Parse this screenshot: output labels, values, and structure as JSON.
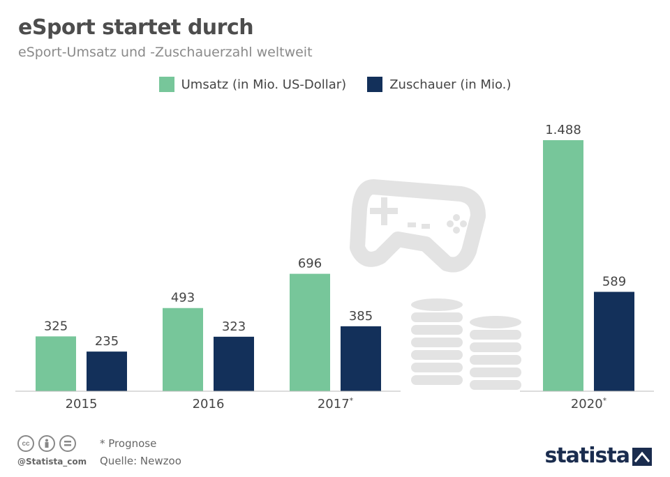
{
  "header": {
    "title": "eSport startet durch",
    "subtitle": "eSport-Umsatz und -Zuschauerzahl weltweit"
  },
  "colors": {
    "umsatz": "#77c69a",
    "zuschauer": "#13305a",
    "label": "#444444"
  },
  "chart_data": {
    "type": "bar",
    "categories": [
      "2015",
      "2016",
      "2017*",
      "2020*"
    ],
    "series": [
      {
        "name": "Umsatz (in Mio. US-Dollar)",
        "values": [
          325,
          493,
          696,
          1488
        ],
        "labels": [
          "325",
          "493",
          "696",
          "1.488"
        ]
      },
      {
        "name": "Zuschauer (in Mio.)",
        "values": [
          235,
          323,
          385,
          589
        ],
        "labels": [
          "235",
          "323",
          "385",
          "589"
        ]
      }
    ],
    "ylim": [
      0,
      1600
    ],
    "grid": false,
    "legend": "top-center"
  },
  "footer": {
    "note": "* Prognose",
    "source": "Quelle: Newzoo",
    "handle": "@Statista_com",
    "brand": "statista"
  },
  "icons": [
    "cc-icon",
    "by-icon",
    "nd-icon",
    "gamepad-icon",
    "coins-icon",
    "statista-logo-icon"
  ]
}
